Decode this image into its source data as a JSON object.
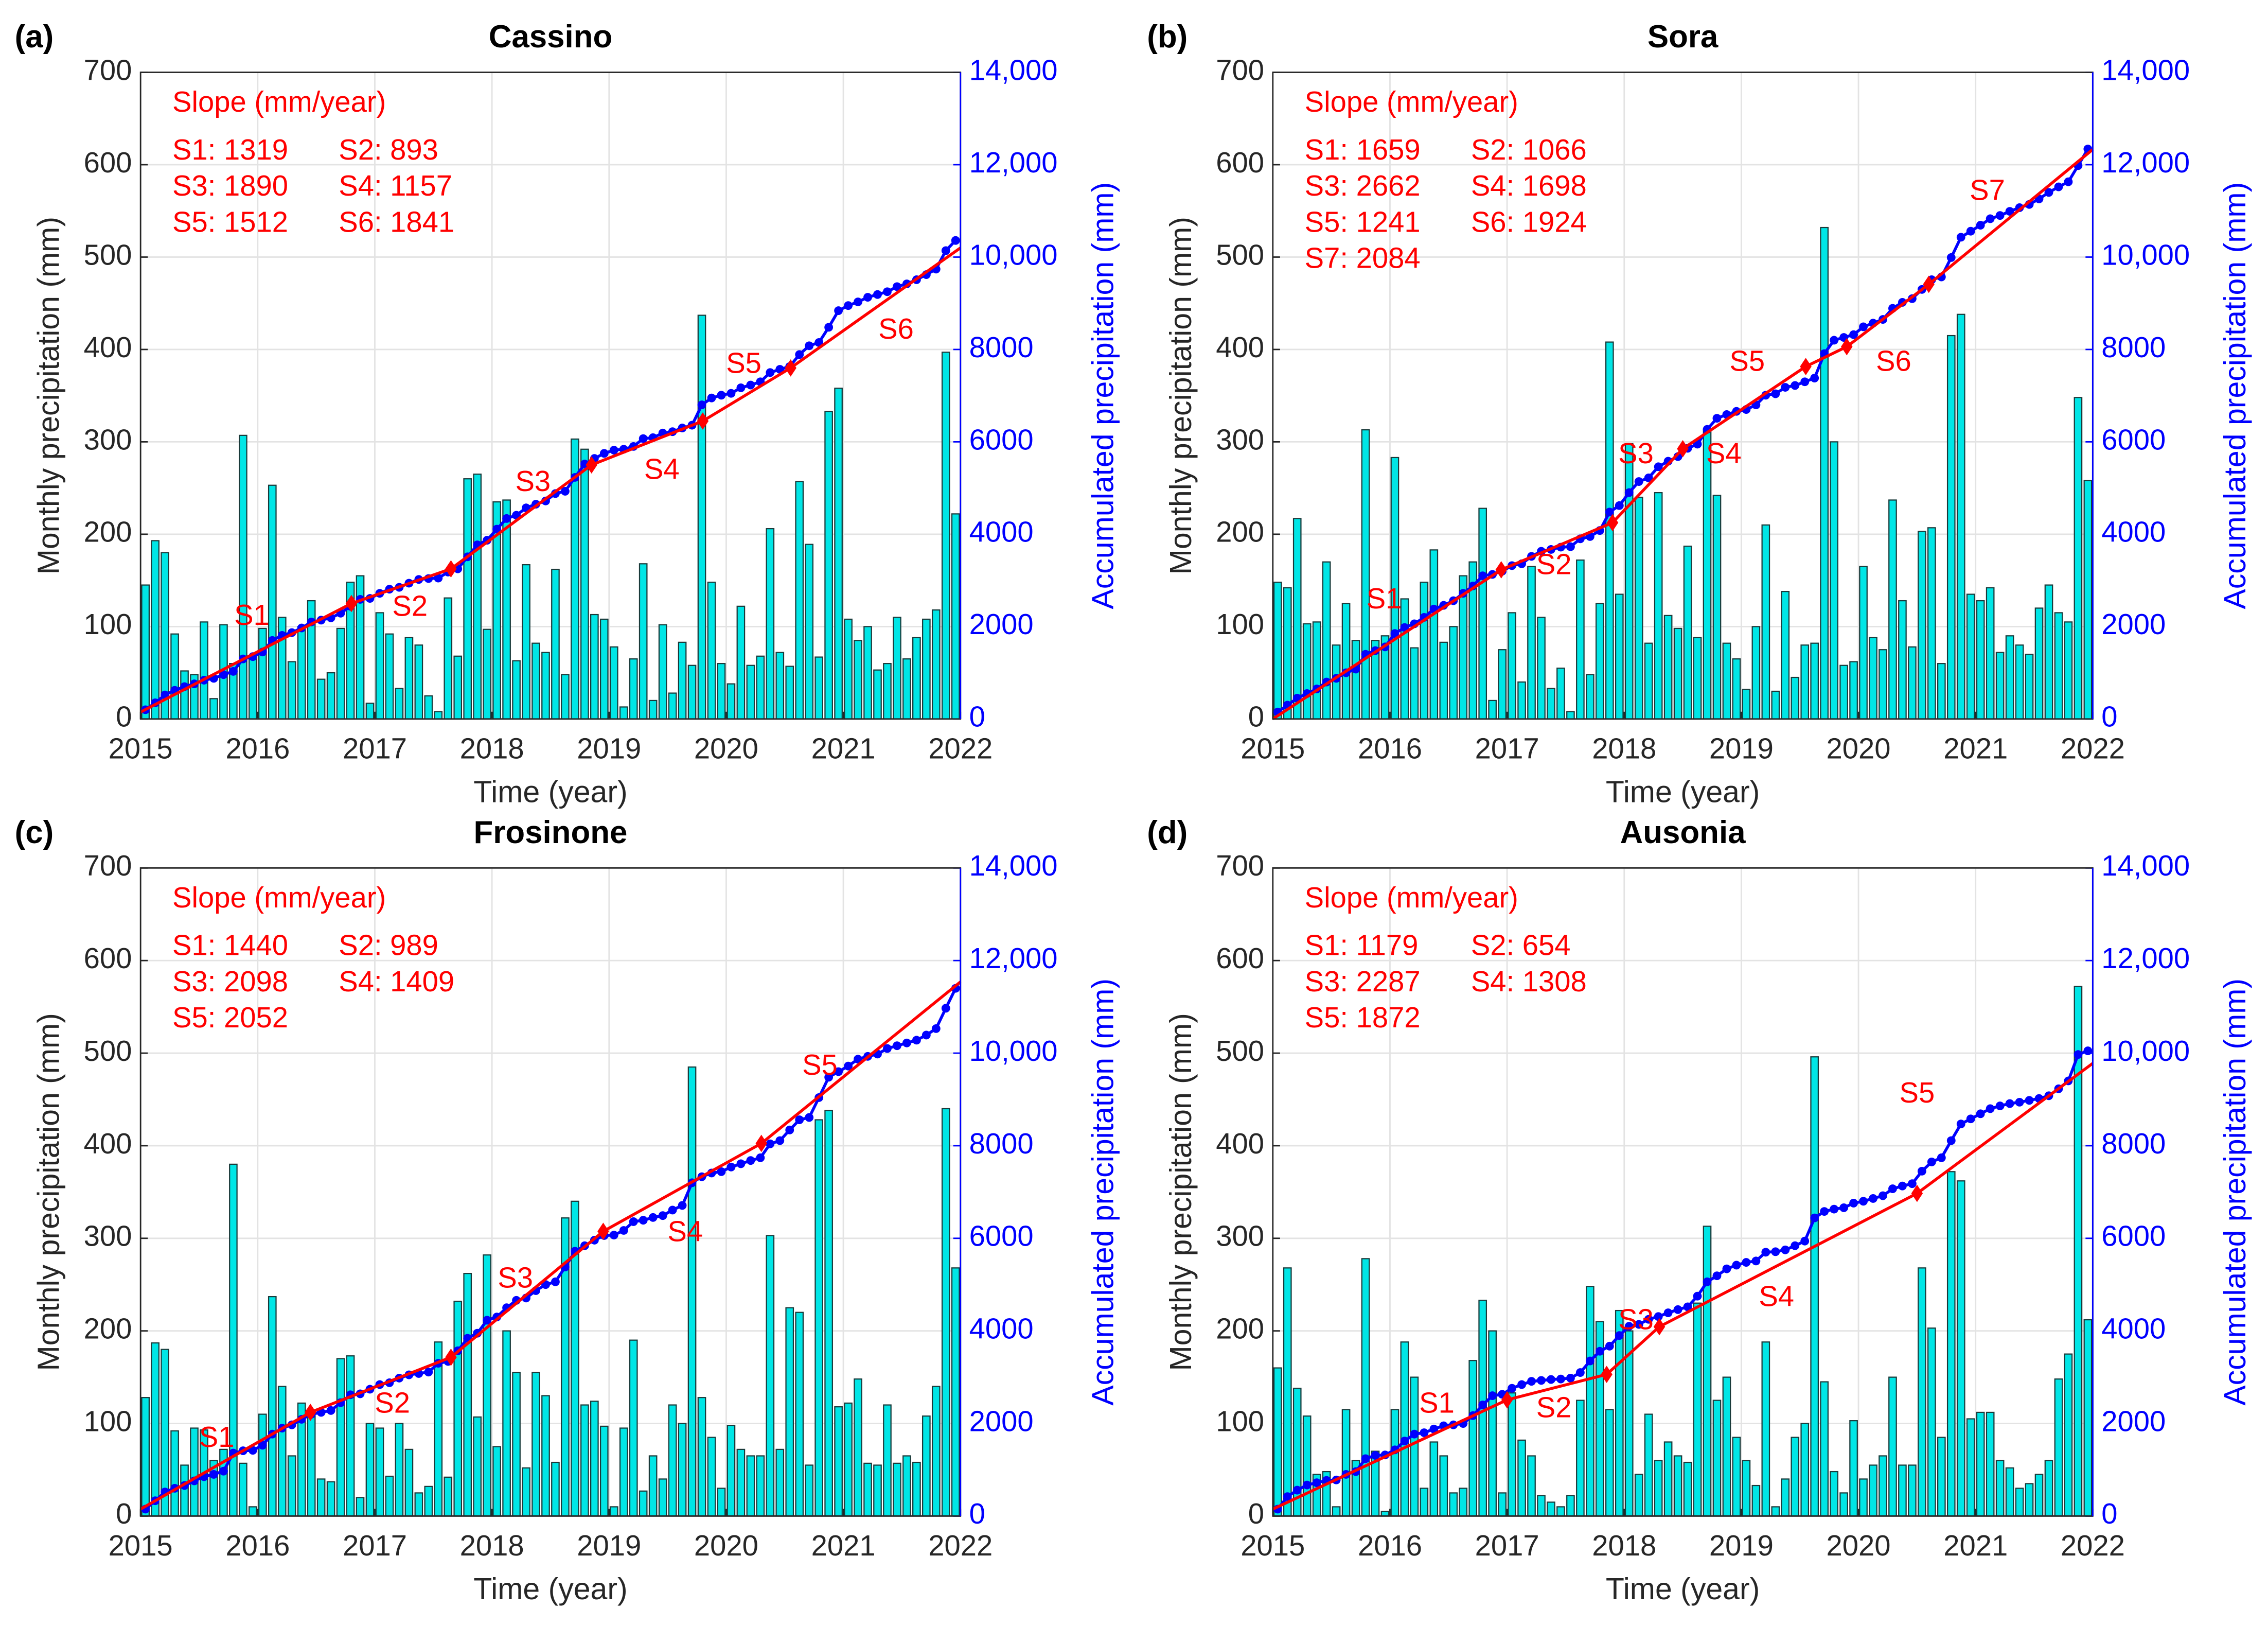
{
  "chart_data": [
    {
      "type": "combo",
      "panel": "(a)",
      "title": "Cassino",
      "xlabel": "Time (year)",
      "ylabel": "Monthly precipitation (mm)",
      "y2label": "Accumulated precipitation (mm)",
      "xlim": [
        2015,
        2022
      ],
      "xticks": [
        2015,
        2016,
        2017,
        2018,
        2019,
        2020,
        2021,
        2022
      ],
      "ylim": [
        0,
        700
      ],
      "yticks": [
        0,
        100,
        200,
        300,
        400,
        500,
        600,
        700
      ],
      "y2lim": [
        0,
        14000
      ],
      "y2ticks": [
        0,
        2000,
        4000,
        6000,
        8000,
        {
          "value": 10000,
          "label": "10,000"
        },
        {
          "value": 12000,
          "label": "12,000"
        },
        {
          "value": 14000,
          "label": "14,000"
        }
      ],
      "grid": true,
      "series": [
        {
          "type": "bar",
          "color": "#00e6e6",
          "values": [
            145,
            193,
            180,
            92,
            52,
            48,
            105,
            22,
            102,
            60,
            307,
            65,
            98,
            253,
            110,
            62,
            100,
            128,
            43,
            50,
            98,
            148,
            155,
            17,
            115,
            92,
            33,
            88,
            80,
            25,
            8,
            131,
            68,
            260,
            265,
            97,
            235,
            237,
            63,
            167,
            82,
            72,
            162,
            48,
            303,
            292,
            113,
            108,
            78,
            13,
            65,
            168,
            20,
            102,
            28,
            83,
            58,
            437,
            148,
            60,
            38,
            122,
            58,
            68,
            206,
            72,
            57,
            257,
            189,
            67,
            333,
            358,
            108,
            85,
            100,
            53,
            60,
            110,
            65,
            88,
            108,
            118,
            397,
            222
          ]
        },
        {
          "type": "line",
          "axis": "y2",
          "color": "#0000ff",
          "values": [
            200,
            350,
            520,
            620,
            700,
            760,
            840,
            880,
            960,
            1030,
            1300,
            1350,
            1450,
            1700,
            1810,
            1870,
            1970,
            2100,
            2140,
            2190,
            2290,
            2440,
            2590,
            2610,
            2720,
            2810,
            2850,
            2940,
            3020,
            3040,
            3050,
            3180,
            3250,
            3510,
            3770,
            3870,
            4110,
            4340,
            4410,
            4570,
            4650,
            4720,
            4880,
            4930,
            5230,
            5520,
            5640,
            5750,
            5820,
            5840,
            5900,
            6070,
            6090,
            6190,
            6220,
            6300,
            6360,
            6800,
            6950,
            7010,
            7050,
            7170,
            7230,
            7300,
            7500,
            7570,
            7630,
            7890,
            8080,
            8150,
            8480,
            8840,
            8950,
            9030,
            9130,
            9190,
            9250,
            9360,
            9420,
            9510,
            9620,
            9740,
            10140,
            10360
          ]
        }
      ],
      "fit": {
        "axis": "y2",
        "color": "#ff0000",
        "x": [
          2015,
          2016.8,
          2017.65,
          2018.85,
          2019.8,
          2020.55,
          2022
        ],
        "values": [
          150,
          2500,
          3250,
          5500,
          6450,
          7600,
          10200
        ]
      },
      "slope_title": "Slope (mm/year)",
      "slopes": [
        "S1: 1319",
        "S2: 893",
        "S3: 1890",
        "S4: 1157",
        "S5: 1512",
        "S6: 1841"
      ],
      "segment_labels": [
        "S1",
        "S2",
        "S3",
        "S4",
        "S5",
        "S6"
      ]
    },
    {
      "type": "combo",
      "panel": "(b)",
      "title": "Sora",
      "xlabel": "Time (year)",
      "ylabel": "Monthly precipitation (mm)",
      "y2label": "Accumulated precipitation (mm)",
      "xlim": [
        2015,
        2022
      ],
      "xticks": [
        2015,
        2016,
        2017,
        2018,
        2019,
        2020,
        2021,
        2022
      ],
      "ylim": [
        0,
        700
      ],
      "yticks": [
        0,
        100,
        200,
        300,
        400,
        500,
        600,
        700
      ],
      "y2lim": [
        0,
        14000
      ],
      "y2ticks": [
        0,
        2000,
        4000,
        6000,
        8000,
        {
          "value": 10000,
          "label": "10,000"
        },
        {
          "value": 12000,
          "label": "12,000"
        },
        {
          "value": 14000,
          "label": "14,000"
        }
      ],
      "grid": true,
      "series": [
        {
          "type": "bar",
          "color": "#00e6e6",
          "values": [
            148,
            142,
            217,
            103,
            105,
            170,
            80,
            125,
            85,
            313,
            85,
            90,
            283,
            130,
            77,
            148,
            183,
            83,
            100,
            155,
            170,
            228,
            20,
            75,
            115,
            40,
            165,
            110,
            33,
            55,
            8,
            172,
            48,
            125,
            408,
            135,
            298,
            240,
            82,
            245,
            112,
            98,
            187,
            88,
            313,
            242,
            82,
            65,
            32,
            100,
            210,
            30,
            138,
            45,
            80,
            82,
            532,
            300,
            58,
            62,
            165,
            88,
            75,
            237,
            128,
            78,
            203,
            207,
            60,
            415,
            438,
            135,
            128,
            142,
            72,
            90,
            80,
            70,
            120,
            145,
            115,
            105,
            348,
            258
          ]
        },
        {
          "type": "line",
          "axis": "y2",
          "color": "#0000ff",
          "values": [
            150,
            300,
            450,
            550,
            650,
            800,
            880,
            1000,
            1080,
            1400,
            1480,
            1560,
            1850,
            1980,
            2060,
            2200,
            2380,
            2460,
            2560,
            2720,
            2880,
            3100,
            3130,
            3200,
            3320,
            3360,
            3520,
            3630,
            3670,
            3720,
            3730,
            3900,
            3950,
            4080,
            4480,
            4620,
            4900,
            5140,
            5220,
            5460,
            5580,
            5680,
            5860,
            5950,
            6270,
            6510,
            6590,
            6660,
            6700,
            6800,
            7010,
            7040,
            7180,
            7220,
            7300,
            7380,
            7910,
            8200,
            8260,
            8320,
            8490,
            8570,
            8650,
            8890,
            9020,
            9100,
            9300,
            9510,
            9570,
            9990,
            10430,
            10560,
            10690,
            10830,
            10900,
            10990,
            11070,
            11140,
            11260,
            11400,
            11520,
            11630,
            11980,
            12340
          ]
        }
      ],
      "fit": {
        "axis": "y2",
        "color": "#ff0000",
        "x": [
          2015,
          2016.95,
          2017.9,
          2018.5,
          2019.55,
          2019.9,
          2020.6,
          2022
        ],
        "values": [
          0,
          3230,
          4250,
          5850,
          7630,
          8060,
          9410,
          12330
        ]
      },
      "slope_title": "Slope (mm/year)",
      "slopes": [
        "S1: 1659",
        "S2: 1066",
        "S3: 2662",
        "S4: 1698",
        "S5: 1241",
        "S6: 1924",
        "S7: 2084"
      ],
      "segment_labels": [
        "S1",
        "S2",
        "S3",
        "S4",
        "S5",
        "S6",
        "S7"
      ]
    },
    {
      "type": "combo",
      "panel": "(c)",
      "title": "Frosinone",
      "xlabel": "Time (year)",
      "ylabel": "Monthly precipitation (mm)",
      "y2label": "Accumulated precipitation (mm)",
      "xlim": [
        2015,
        2022
      ],
      "xticks": [
        2015,
        2016,
        2017,
        2018,
        2019,
        2020,
        2021,
        2022
      ],
      "ylim": [
        0,
        700
      ],
      "yticks": [
        0,
        100,
        200,
        300,
        400,
        500,
        600,
        700
      ],
      "y2lim": [
        0,
        14000
      ],
      "y2ticks": [
        0,
        2000,
        4000,
        6000,
        8000,
        {
          "value": 10000,
          "label": "10,000"
        },
        {
          "value": 12000,
          "label": "12,000"
        },
        {
          "value": 14000,
          "label": "14,000"
        }
      ],
      "grid": true,
      "series": [
        {
          "type": "bar",
          "color": "#00e6e6",
          "values": [
            128,
            187,
            180,
            92,
            55,
            95,
            93,
            60,
            72,
            380,
            57,
            10,
            110,
            237,
            140,
            65,
            122,
            112,
            40,
            37,
            170,
            173,
            20,
            100,
            95,
            43,
            100,
            72,
            25,
            32,
            188,
            42,
            232,
            262,
            107,
            282,
            75,
            200,
            155,
            52,
            155,
            130,
            58,
            322,
            340,
            120,
            124,
            97,
            10,
            95,
            190,
            27,
            65,
            40,
            120,
            100,
            485,
            128,
            85,
            30,
            98,
            72,
            65,
            65,
            303,
            72,
            225,
            220,
            55,
            428,
            438,
            118,
            122,
            148,
            57,
            55,
            120,
            57,
            65,
            58,
            108,
            140,
            440,
            268
          ]
        },
        {
          "type": "line",
          "axis": "y2",
          "color": "#0000ff",
          "values": [
            150,
            330,
            520,
            600,
            660,
            760,
            850,
            900,
            970,
            1360,
            1410,
            1420,
            1530,
            1770,
            1900,
            1970,
            2090,
            2200,
            2240,
            2280,
            2450,
            2620,
            2640,
            2740,
            2840,
            2880,
            2980,
            3050,
            3080,
            3110,
            3300,
            3340,
            3570,
            3840,
            3950,
            4230,
            4300,
            4500,
            4660,
            4710,
            4870,
            5000,
            5060,
            5380,
            5720,
            5840,
            5960,
            6060,
            6070,
            6170,
            6360,
            6390,
            6450,
            6490,
            6610,
            6710,
            7200,
            7330,
            7410,
            7440,
            7540,
            7610,
            7680,
            7740,
            8040,
            8110,
            8340,
            8560,
            8610,
            9040,
            9480,
            9600,
            9720,
            9870,
            9930,
            9980,
            10100,
            10160,
            10220,
            10280,
            10390,
            10530,
            10970,
            11400
          ]
        }
      ],
      "fit": {
        "axis": "y2",
        "color": "#ff0000",
        "x": [
          2015,
          2016.45,
          2017.65,
          2018.95,
          2020.3,
          2022
        ],
        "values": [
          150,
          2240,
          3430,
          6150,
          8050,
          11540
        ]
      },
      "slope_title": "Slope (mm/year)",
      "slopes": [
        "S1: 1440",
        "S2: 989",
        "S3: 2098",
        "S4: 1409",
        "S5: 2052"
      ],
      "segment_labels": [
        "S1",
        "S2",
        "S3",
        "S4",
        "S5"
      ]
    },
    {
      "type": "combo",
      "panel": "(d)",
      "title": "Ausonia",
      "xlabel": "Time (year)",
      "ylabel": "Monthly precipitation (mm)",
      "y2label": "Accumulated precipitation (mm)",
      "xlim": [
        2015,
        2022
      ],
      "xticks": [
        2015,
        2016,
        2017,
        2018,
        2019,
        2020,
        2021,
        2022
      ],
      "ylim": [
        0,
        700
      ],
      "yticks": [
        0,
        100,
        200,
        300,
        400,
        500,
        600,
        700
      ],
      "y2lim": [
        0,
        14000
      ],
      "y2ticks": [
        0,
        2000,
        4000,
        6000,
        8000,
        {
          "value": 10000,
          "label": "10,000"
        },
        {
          "value": 12000,
          "label": "12,000"
        },
        {
          "value": 14000,
          "label": "14,000"
        }
      ],
      "grid": true,
      "series": [
        {
          "type": "bar",
          "color": "#00e6e6",
          "values": [
            160,
            268,
            138,
            108,
            45,
            48,
            10,
            115,
            60,
            278,
            70,
            5,
            115,
            188,
            150,
            30,
            80,
            65,
            25,
            30,
            168,
            233,
            200,
            25,
            133,
            82,
            65,
            22,
            15,
            10,
            22,
            125,
            248,
            210,
            115,
            222,
            200,
            45,
            110,
            60,
            80,
            65,
            58,
            230,
            313,
            125,
            150,
            85,
            60,
            33,
            188,
            10,
            40,
            85,
            100,
            496,
            145,
            48,
            25,
            103,
            40,
            55,
            65,
            150,
            55,
            55,
            268,
            203,
            85,
            372,
            362,
            105,
            112,
            112,
            60,
            52,
            30,
            35,
            45,
            60,
            148,
            175,
            572,
            212
          ]
        },
        {
          "type": "line",
          "axis": "y2",
          "color": "#0000ff",
          "values": [
            150,
            420,
            560,
            670,
            720,
            770,
            780,
            900,
            960,
            1240,
            1310,
            1320,
            1430,
            1620,
            1770,
            1800,
            1880,
            1950,
            1970,
            2000,
            2170,
            2400,
            2600,
            2630,
            2760,
            2840,
            2910,
            2930,
            2950,
            2960,
            2980,
            3100,
            3350,
            3560,
            3670,
            3900,
            4100,
            4140,
            4250,
            4310,
            4390,
            4460,
            4520,
            4750,
            5060,
            5190,
            5340,
            5420,
            5480,
            5510,
            5700,
            5710,
            5750,
            5840,
            5940,
            6440,
            6580,
            6630,
            6660,
            6760,
            6800,
            6860,
            6920,
            7070,
            7130,
            7180,
            7450,
            7650,
            7740,
            8110,
            8470,
            8580,
            8690,
            8800,
            8860,
            8910,
            8940,
            8980,
            9020,
            9080,
            9230,
            9400,
            9970,
            10050
          ]
        }
      ],
      "fit": {
        "axis": "y2",
        "color": "#ff0000",
        "x": [
          2015,
          2017,
          2017.85,
          2018.3,
          2020.5,
          2022
        ],
        "values": [
          150,
          2510,
          3060,
          4090,
          6970,
          9780
        ]
      },
      "slope_title": "Slope (mm/year)",
      "slopes": [
        "S1: 1179",
        "S2: 654",
        "S3: 2287",
        "S4: 1308",
        "S5: 1872"
      ],
      "segment_labels": [
        "S1",
        "S2",
        "S3",
        "S4",
        "S5"
      ]
    }
  ]
}
